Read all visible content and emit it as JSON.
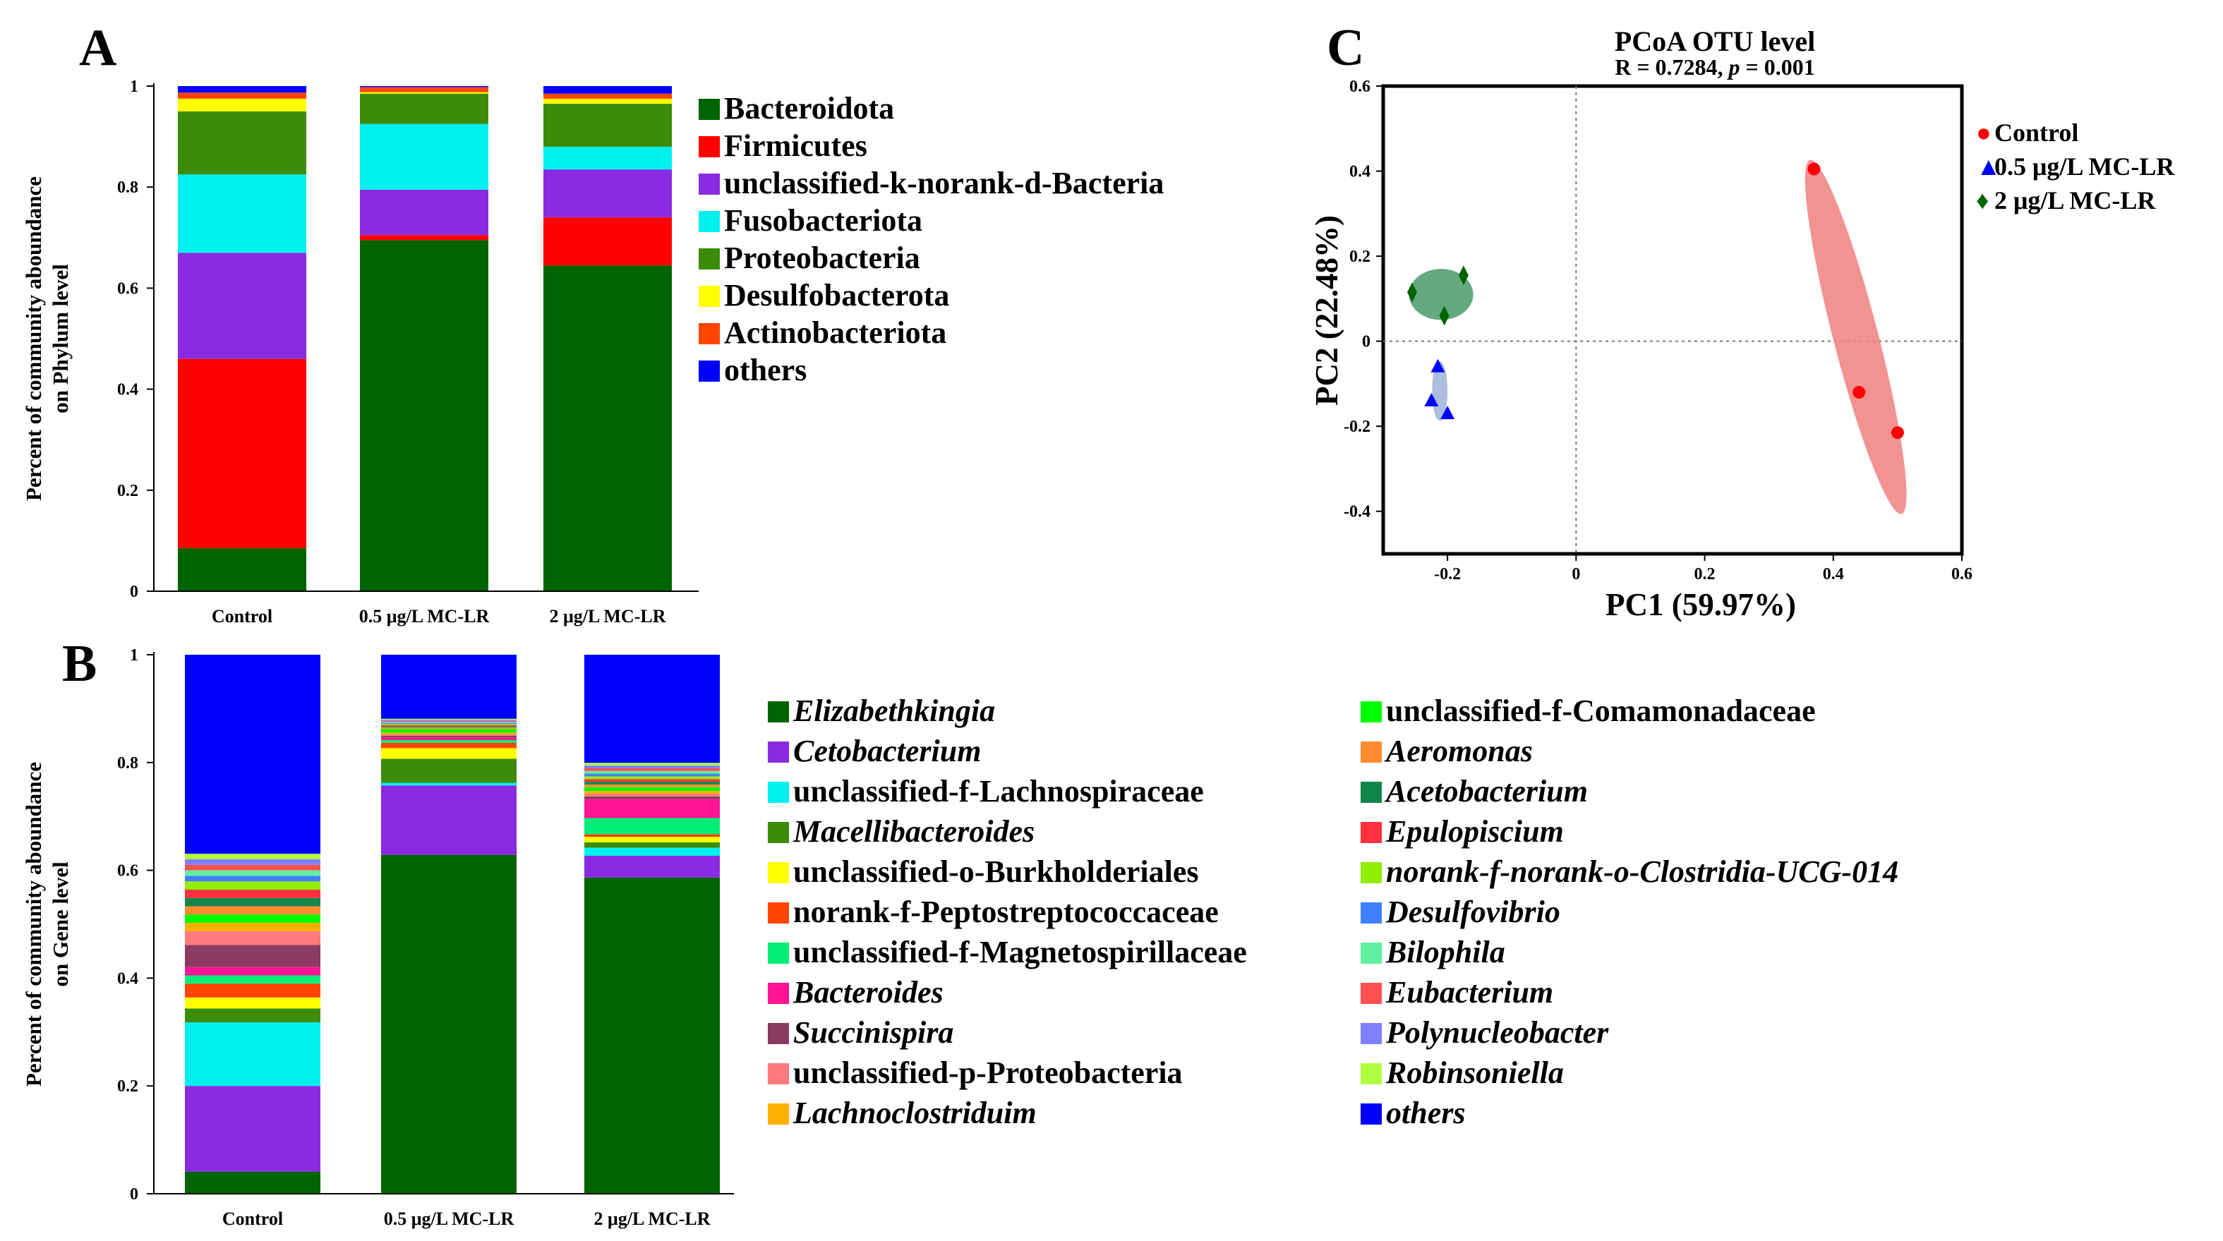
{
  "chart_data": [
    {
      "panel": "A",
      "type": "bar",
      "stacked": true,
      "ylabel_line1": "Percent of community aboundance",
      "ylabel_line2": "on Phylum level",
      "ylim": [
        0,
        1
      ],
      "yticks": [
        "0",
        "0.2",
        "0.4",
        "0.6",
        "0.8",
        "1"
      ],
      "categories": [
        "Control",
        "0.5 μg/L MC-LR",
        "2 μg/L MC-LR"
      ],
      "series": [
        {
          "name": "Bacteroidota",
          "color": "#006400",
          "values": [
            0.085,
            0.695,
            0.645
          ]
        },
        {
          "name": "Firmicutes",
          "color": "#ff0000",
          "values": [
            0.375,
            0.01,
            0.095
          ]
        },
        {
          "name": "unclassified-k-norank-d-Bacteria",
          "color": "#8a2be2",
          "values": [
            0.21,
            0.09,
            0.095
          ]
        },
        {
          "name": "Fusobacteriota",
          "color": "#00f0f0",
          "values": [
            0.155,
            0.13,
            0.045
          ]
        },
        {
          "name": "Proteobacteria",
          "color": "#3c8c0a",
          "values": [
            0.125,
            0.06,
            0.085
          ]
        },
        {
          "name": "Desulfobacterota",
          "color": "#ffff00",
          "values": [
            0.025,
            0.003,
            0.01
          ]
        },
        {
          "name": "Actinobacteriota",
          "color": "#ff4500",
          "values": [
            0.012,
            0.01,
            0.01
          ]
        },
        {
          "name": "others",
          "color": "#0000ff",
          "values": [
            0.013,
            0.002,
            0.015
          ]
        }
      ]
    },
    {
      "panel": "B",
      "type": "bar",
      "stacked": true,
      "ylabel_line1": "Percent of community aboundance",
      "ylabel_line2": "on Gene level",
      "ylim": [
        0,
        1
      ],
      "yticks": [
        "0",
        "0.2",
        "0.4",
        "0.6",
        "0.8",
        "1"
      ],
      "categories": [
        "Control",
        "0.5 μg/L MC-LR",
        "2 μg/L MC-LR"
      ],
      "series": [
        {
          "name": "Elizabethkingia",
          "italic": true,
          "color": "#006400",
          "values": [
            0.04,
            0.635,
            0.585
          ]
        },
        {
          "name": "Cetobacterium",
          "italic": true,
          "color": "#8a2be2",
          "values": [
            0.155,
            0.13,
            0.04
          ]
        },
        {
          "name": "unclassified-f-Lachnospiraceae",
          "italic": false,
          "color": "#00f0f0",
          "values": [
            0.115,
            0.005,
            0.015
          ]
        },
        {
          "name": "Macellibacteroides",
          "italic": true,
          "color": "#3c8c0a",
          "values": [
            0.025,
            0.045,
            0.01
          ]
        },
        {
          "name": "unclassified-o-Burkholderiales",
          "italic": false,
          "color": "#ffff00",
          "values": [
            0.02,
            0.02,
            0.01
          ]
        },
        {
          "name": "norank-f-Peptostreptococcaceae",
          "italic": false,
          "color": "#ff4500",
          "values": [
            0.025,
            0.01,
            0.005
          ]
        },
        {
          "name": "unclassified-f-Magnetospirillaceae",
          "italic": false,
          "color": "#00ee76",
          "values": [
            0.015,
            0.005,
            0.03
          ]
        },
        {
          "name": "Bacteroides",
          "italic": true,
          "color": "#ff1493",
          "values": [
            0.015,
            0.005,
            0.035
          ]
        },
        {
          "name": "Succinispira",
          "italic": true,
          "color": "#8b3a62",
          "values": [
            0.04,
            0.003,
            0.005
          ]
        },
        {
          "name": "unclassified-p-Proteobacteria",
          "italic": false,
          "color": "#ff7a7a",
          "values": [
            0.025,
            0.003,
            0.005
          ]
        },
        {
          "name": "Lachnoclostriduim",
          "italic": true,
          "color": "#ffb000",
          "values": [
            0.015,
            0.003,
            0.005
          ]
        },
        {
          "name": "unclassified-f-Comamonadaceae",
          "italic": false,
          "color": "#00ff00",
          "values": [
            0.015,
            0.007,
            0.007
          ]
        },
        {
          "name": "Aeromonas",
          "italic": true,
          "color": "#ff8c30",
          "values": [
            0.015,
            0.003,
            0.005
          ]
        },
        {
          "name": "Acetobacterium",
          "italic": true,
          "color": "#10864a",
          "values": [
            0.015,
            0.002,
            0.005
          ]
        },
        {
          "name": "Epulopiscium",
          "italic": true,
          "color": "#ff3040",
          "values": [
            0.015,
            0.002,
            0.005
          ]
        },
        {
          "name": "norank-f-norank-o-Clostridia-UCG-014",
          "italic": true,
          "color": "#90ee00",
          "values": [
            0.015,
            0.002,
            0.005
          ]
        },
        {
          "name": "Desulfovibrio",
          "italic": true,
          "color": "#4080ff",
          "values": [
            0.01,
            0.002,
            0.005
          ]
        },
        {
          "name": "Bilophila",
          "italic": true,
          "color": "#60f0a0",
          "values": [
            0.01,
            0.002,
            0.005
          ]
        },
        {
          "name": "Eubacterium",
          "italic": true,
          "color": "#ff5050",
          "values": [
            0.01,
            0.002,
            0.005
          ]
        },
        {
          "name": "Polynucleobacter",
          "italic": true,
          "color": "#8080ff",
          "values": [
            0.01,
            0.002,
            0.005
          ]
        },
        {
          "name": "Robinsoniella",
          "italic": true,
          "color": "#b0ff40",
          "values": [
            0.01,
            0.002,
            0.005
          ]
        },
        {
          "name": "others",
          "italic": true,
          "color": "#0000ff",
          "values": [
            0.36,
            0.12,
            0.2
          ]
        }
      ]
    },
    {
      "panel": "C",
      "type": "scatter",
      "title": "PCoA OTU level",
      "subtitle_prefix": "R = 0.7284, ",
      "subtitle_p": "p",
      "subtitle_suffix": " = 0.001",
      "xlabel": "PC1 (59.97%)",
      "ylabel": "PC2 (22.48%)",
      "xlim": [
        -0.3,
        0.6
      ],
      "ylim": [
        -0.5,
        0.6
      ],
      "xticks": [
        -0.2,
        0,
        0.2,
        0.4,
        0.6
      ],
      "yticks": [
        -0.4,
        -0.2,
        0,
        0.2,
        0.4,
        0.6
      ],
      "xtick_labels": [
        "-0.2",
        "0",
        "0.2",
        "0.4",
        "0.6"
      ],
      "ytick_labels": [
        "-0.4",
        "-0.2",
        "0",
        "0.2",
        "0.4",
        "0.6"
      ],
      "groups": [
        {
          "name": "Control",
          "color": "#ff0000",
          "marker": "●",
          "ellipse_color": "#f08080",
          "points": [
            [
              0.37,
              0.405
            ],
            [
              0.44,
              -0.12
            ],
            [
              0.5,
              -0.215
            ]
          ],
          "ellipse": {
            "cx": 0.435,
            "cy": 0.01,
            "rx": 0.035,
            "ry": 0.43,
            "rot_deg": -14.5
          }
        },
        {
          "name": "0.5 μg/L MC-LR",
          "color": "#0000ff",
          "marker": "▲",
          "ellipse_color": "#9fb4d8",
          "points": [
            [
              -0.215,
              -0.06
            ],
            [
              -0.225,
              -0.14
            ],
            [
              -0.2,
              -0.17
            ]
          ],
          "ellipse": {
            "cx": -0.212,
            "cy": -0.117,
            "rx": 0.012,
            "ry": 0.07,
            "rot_deg": 0
          }
        },
        {
          "name": "2 μg/L MC-LR",
          "color": "#006400",
          "marker": "♦",
          "ellipse_color": "#4a9a6a",
          "points": [
            [
              -0.255,
              0.115
            ],
            [
              -0.175,
              0.155
            ],
            [
              -0.205,
              0.06
            ]
          ],
          "ellipse": {
            "cx": -0.21,
            "cy": 0.11,
            "rx": 0.05,
            "ry": 0.06,
            "rot_deg": 0
          }
        }
      ]
    }
  ],
  "panels": {
    "a": "A",
    "b": "B",
    "c": "C"
  }
}
